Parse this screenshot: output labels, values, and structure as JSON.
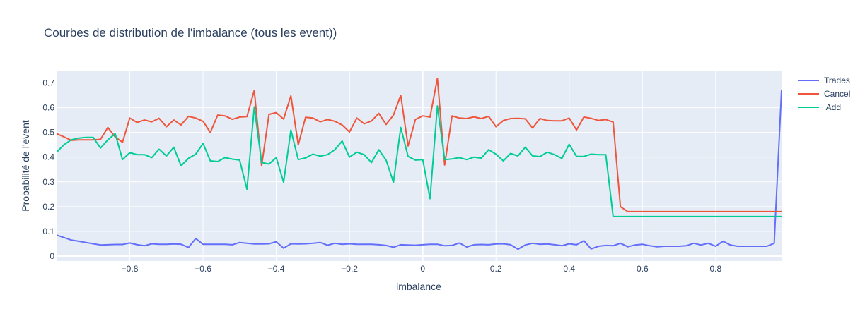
{
  "chart_data": {
    "type": "line",
    "title": "Courbes de distribution de l'imbalance (tous les event))",
    "xlabel": "imbalance",
    "ylabel": "Probabilité de l'event",
    "xlim": [
      -1.0,
      0.98
    ],
    "ylim": [
      -0.02,
      0.75
    ],
    "x_ticks": [
      -0.8,
      -0.6,
      -0.4,
      -0.2,
      0,
      0.2,
      0.4,
      0.6,
      0.8
    ],
    "x_tick_labels": [
      "−0.8",
      "−0.6",
      "−0.4",
      "−0.2",
      "0",
      "0.2",
      "0.4",
      "0.6",
      "0.8"
    ],
    "y_ticks": [
      0,
      0.1,
      0.2,
      0.3,
      0.4,
      0.5,
      0.6,
      0.7
    ],
    "y_tick_labels": [
      "0",
      "0.1",
      "0.2",
      "0.3",
      "0.4",
      "0.5",
      "0.6",
      "0.7"
    ],
    "grid": true,
    "legend_position": "top-right",
    "x": [
      -1.0,
      -0.98,
      -0.96,
      -0.94,
      -0.92,
      -0.9,
      -0.88,
      -0.86,
      -0.84,
      -0.82,
      -0.8,
      -0.78,
      -0.76,
      -0.74,
      -0.72,
      -0.7,
      -0.68,
      -0.66,
      -0.64,
      -0.62,
      -0.6,
      -0.58,
      -0.56,
      -0.54,
      -0.52,
      -0.5,
      -0.48,
      -0.46,
      -0.44,
      -0.42,
      -0.4,
      -0.38,
      -0.36,
      -0.34,
      -0.32,
      -0.3,
      -0.28,
      -0.26,
      -0.24,
      -0.22,
      -0.2,
      -0.18,
      -0.16,
      -0.14,
      -0.12,
      -0.1,
      -0.08,
      -0.06,
      -0.04,
      -0.02,
      0.0,
      0.02,
      0.04,
      0.06,
      0.08,
      0.1,
      0.12,
      0.14,
      0.16,
      0.18,
      0.2,
      0.22,
      0.24,
      0.26,
      0.28,
      0.3,
      0.32,
      0.34,
      0.36,
      0.38,
      0.4,
      0.42,
      0.44,
      0.46,
      0.48,
      0.5,
      0.52,
      0.54,
      0.56,
      0.58,
      0.6,
      0.62,
      0.64,
      0.66,
      0.68,
      0.7,
      0.72,
      0.74,
      0.76,
      0.78,
      0.8,
      0.82,
      0.84,
      0.86,
      0.88,
      0.9,
      0.92,
      0.94,
      0.96,
      0.98
    ],
    "series": [
      {
        "name": "Trades",
        "color": "#636efa",
        "values": [
          0.085,
          0.075,
          0.065,
          0.06,
          0.055,
          0.05,
          0.045,
          0.046,
          0.047,
          0.047,
          0.053,
          0.046,
          0.042,
          0.05,
          0.048,
          0.048,
          0.049,
          0.048,
          0.035,
          0.071,
          0.048,
          0.048,
          0.048,
          0.048,
          0.046,
          0.055,
          0.052,
          0.049,
          0.049,
          0.05,
          0.058,
          0.032,
          0.05,
          0.049,
          0.05,
          0.052,
          0.055,
          0.044,
          0.052,
          0.048,
          0.05,
          0.048,
          0.048,
          0.048,
          0.046,
          0.043,
          0.036,
          0.046,
          0.045,
          0.044,
          0.046,
          0.048,
          0.048,
          0.042,
          0.043,
          0.053,
          0.037,
          0.046,
          0.047,
          0.046,
          0.049,
          0.05,
          0.046,
          0.028,
          0.045,
          0.052,
          0.048,
          0.049,
          0.046,
          0.042,
          0.05,
          0.046,
          0.062,
          0.029,
          0.04,
          0.043,
          0.042,
          0.052,
          0.038,
          0.045,
          0.048,
          0.042,
          0.038,
          0.04,
          0.04,
          0.04,
          0.042,
          0.052,
          0.045,
          0.052,
          0.04,
          0.06,
          0.045,
          0.04,
          0.04,
          0.04,
          0.04,
          0.04,
          0.052,
          0.67
        ]
      },
      {
        "name": "Cancel",
        "color": "#ef553b",
        "values": [
          0.495,
          0.482,
          0.468,
          0.47,
          0.47,
          0.47,
          0.472,
          0.52,
          0.482,
          0.46,
          0.558,
          0.54,
          0.55,
          0.543,
          0.557,
          0.523,
          0.55,
          0.53,
          0.565,
          0.558,
          0.545,
          0.5,
          0.57,
          0.567,
          0.553,
          0.562,
          0.564,
          0.67,
          0.365,
          0.573,
          0.58,
          0.554,
          0.648,
          0.45,
          0.561,
          0.558,
          0.543,
          0.552,
          0.545,
          0.53,
          0.502,
          0.558,
          0.535,
          0.546,
          0.577,
          0.532,
          0.57,
          0.65,
          0.445,
          0.552,
          0.567,
          0.562,
          0.718,
          0.368,
          0.567,
          0.558,
          0.556,
          0.563,
          0.556,
          0.565,
          0.523,
          0.548,
          0.556,
          0.557,
          0.555,
          0.518,
          0.556,
          0.548,
          0.547,
          0.547,
          0.558,
          0.51,
          0.562,
          0.557,
          0.548,
          0.552,
          0.542,
          0.2,
          0.18,
          0.18,
          0.18,
          0.18,
          0.18,
          0.18,
          0.18,
          0.18,
          0.18,
          0.18,
          0.18,
          0.18,
          0.18,
          0.18,
          0.18,
          0.18,
          0.18,
          0.18,
          0.18,
          0.18,
          0.18,
          0.18
        ]
      },
      {
        "name": " Add",
        "color": "#00cc96",
        "values": [
          0.42,
          0.45,
          0.47,
          0.477,
          0.48,
          0.48,
          0.437,
          0.47,
          0.495,
          0.39,
          0.418,
          0.41,
          0.41,
          0.398,
          0.432,
          0.405,
          0.44,
          0.365,
          0.395,
          0.412,
          0.455,
          0.385,
          0.382,
          0.398,
          0.392,
          0.388,
          0.27,
          0.603,
          0.378,
          0.372,
          0.398,
          0.298,
          0.51,
          0.39,
          0.397,
          0.412,
          0.404,
          0.41,
          0.43,
          0.465,
          0.4,
          0.42,
          0.41,
          0.378,
          0.43,
          0.388,
          0.298,
          0.52,
          0.403,
          0.388,
          0.39,
          0.232,
          0.607,
          0.39,
          0.393,
          0.398,
          0.39,
          0.4,
          0.396,
          0.43,
          0.412,
          0.385,
          0.415,
          0.405,
          0.44,
          0.405,
          0.402,
          0.42,
          0.41,
          0.395,
          0.452,
          0.403,
          0.403,
          0.412,
          0.41,
          0.41,
          0.16,
          0.16,
          0.16,
          0.16,
          0.16,
          0.16,
          0.16,
          0.16,
          0.16,
          0.16,
          0.16,
          0.16,
          0.16,
          0.16,
          0.16,
          0.16,
          0.16,
          0.16,
          0.16,
          0.16,
          0.16,
          0.16,
          0.16,
          0.16
        ]
      }
    ]
  }
}
